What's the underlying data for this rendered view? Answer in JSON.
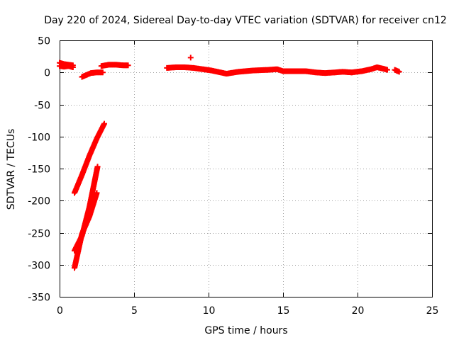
{
  "chart_data": {
    "type": "scatter",
    "title": "Day 220 of 2024, Sidereal Day-to-day VTEC variation (SDTVAR) for receiver cn12",
    "xlabel": "GPS time / hours",
    "ylabel": "SDTVAR / TECUs",
    "xlim": [
      0,
      25
    ],
    "ylim": [
      -350,
      50
    ],
    "x_ticks": [
      0,
      5,
      10,
      15,
      20,
      25
    ],
    "x_tick_labels": [
      "0",
      "5",
      "10",
      "15",
      "20",
      "25"
    ],
    "y_ticks": [
      50,
      0,
      -50,
      -100,
      -150,
      -200,
      -250,
      -300,
      -350
    ],
    "y_tick_labels": [
      "50",
      "0",
      "-50",
      "-100",
      "-150",
      "-200",
      "-250",
      "-300",
      "-350"
    ],
    "grid": true,
    "marker": "plus",
    "color": "#ff0000",
    "series": [
      {
        "segments": [
          {
            "x": [
              0.0,
              0.3,
              0.6,
              0.9
            ],
            "y": [
              15,
              13,
              12,
              11
            ]
          },
          {
            "x": [
              0.0,
              0.3,
              0.6,
              0.9
            ],
            "y": [
              10,
              9,
              10,
              8
            ]
          },
          {
            "x": [
              1.5,
              1.8,
              2.1,
              2.5,
              2.9
            ],
            "y": [
              -7,
              -4,
              -1,
              0,
              0
            ]
          },
          {
            "x": [
              2.8,
              3.3,
              3.8,
              4.3,
              4.6
            ],
            "y": [
              10,
              12,
              12,
              11,
              11
            ]
          },
          {
            "x": [
              7.2,
              7.8,
              8.4,
              9.0,
              9.6,
              10.2,
              10.8,
              11.2
            ],
            "y": [
              7,
              8,
              8,
              7,
              5,
              3,
              0,
              -2
            ]
          },
          {
            "x": [
              11.2,
              12.0,
              13.0,
              14.0,
              14.6,
              15.0,
              15.6
            ],
            "y": [
              -2,
              1,
              3,
              4,
              5,
              2,
              2
            ]
          },
          {
            "x": [
              15.6,
              16.5,
              17.2,
              17.8,
              18.5,
              19.0,
              19.6
            ],
            "y": [
              2,
              2,
              0,
              -1,
              0,
              1,
              0
            ]
          },
          {
            "x": [
              19.6,
              20.3,
              20.9,
              21.3,
              21.7,
              22.0
            ],
            "y": [
              0,
              2,
              5,
              8,
              6,
              4
            ]
          },
          {
            "x": [
              22.5,
              22.8
            ],
            "y": [
              4,
              1
            ]
          },
          {
            "x": [
              1.0,
              1.5,
              2.0,
              2.5,
              3.0
            ],
            "y": [
              -188,
              -160,
              -130,
              -103,
              -80
            ]
          },
          {
            "x": [
              1.0,
              1.5,
              2.0,
              2.55
            ],
            "y": [
              -278,
              -255,
              -210,
              -147
            ]
          },
          {
            "x": [
              1.0,
              1.5,
              2.0,
              2.5
            ],
            "y": [
              -305,
              -252,
              -225,
              -188
            ]
          }
        ],
        "isolated": [
          {
            "x": 8.8,
            "y": 23
          }
        ]
      }
    ]
  }
}
